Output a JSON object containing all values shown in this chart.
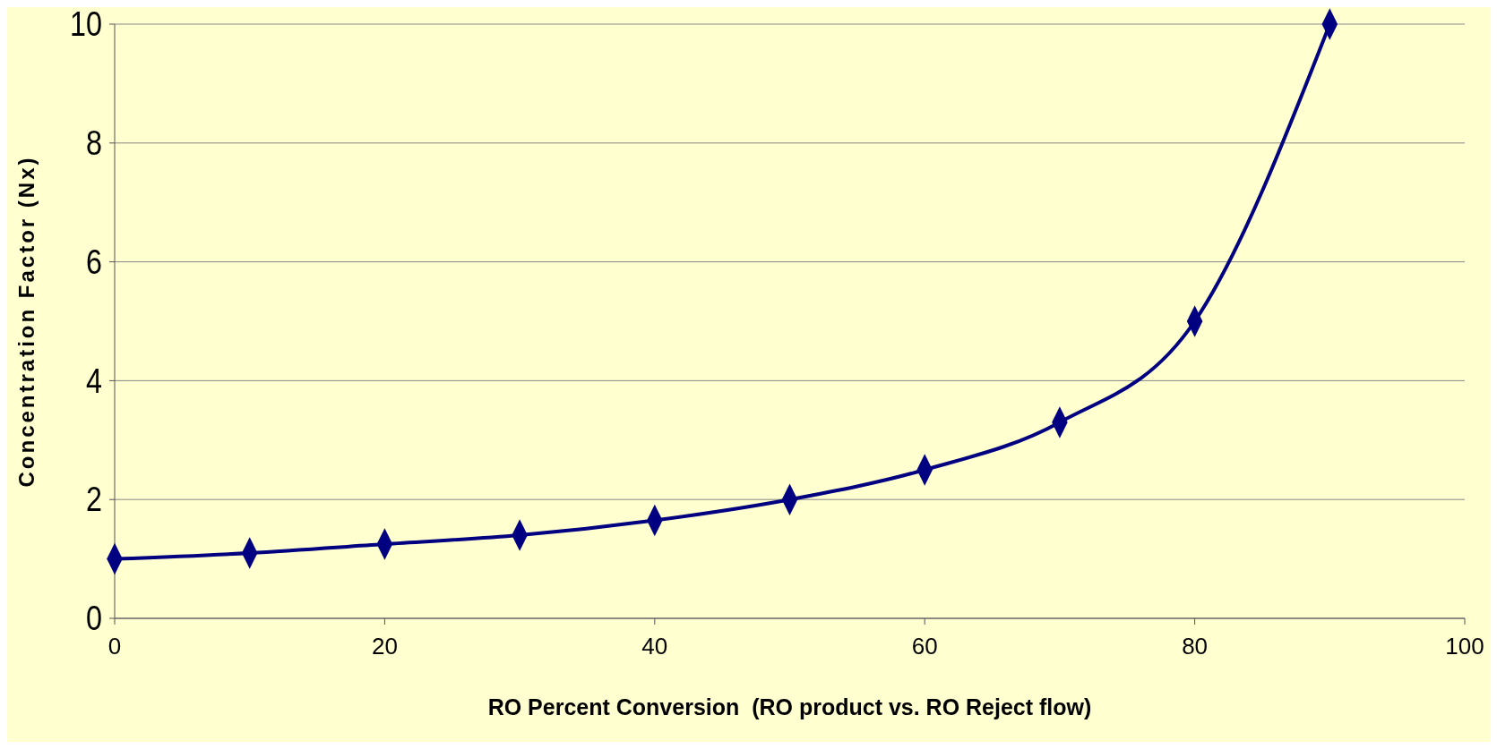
{
  "chart_data": {
    "type": "line",
    "xlabel": "RO Percent Conversion  (RO product vs. RO Reject flow)",
    "ylabel": "Concentration Factor (Nx)",
    "x": [
      0,
      10,
      20,
      30,
      40,
      50,
      60,
      70,
      80,
      90
    ],
    "series": [
      {
        "color": "#000080",
        "values": [
          1,
          1.1,
          1.25,
          1.4,
          1.65,
          2,
          2.5,
          3.3,
          5,
          10
        ]
      }
    ],
    "xlim": [
      0,
      100
    ],
    "xticks": [
      0,
      20,
      40,
      60,
      80,
      100
    ],
    "ylim": [
      0,
      10
    ],
    "yticks": [
      0,
      2,
      4,
      6,
      8,
      10
    ],
    "grid": "y",
    "marker": "diamond",
    "line_style": "solid"
  }
}
